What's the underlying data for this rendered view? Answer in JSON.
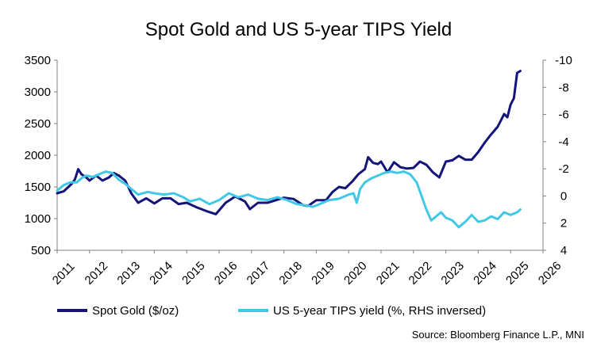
{
  "chart_data": {
    "type": "line",
    "title": "Spot Gold and US 5-year TIPS Yield",
    "source": "Source: Bloomberg Finance L.P., MNI",
    "colors": {
      "gold": "#14147a",
      "tips": "#40c8e6",
      "axis": "#808080"
    },
    "x_axis": {
      "min": 2011,
      "max": 2026,
      "ticks": [
        "2011",
        "2012",
        "2013",
        "2014",
        "2015",
        "2016",
        "2017",
        "2018",
        "2019",
        "2020",
        "2021",
        "2022",
        "2023",
        "2024",
        "2025",
        "2026"
      ]
    },
    "y_left": {
      "min": 500,
      "max": 3500,
      "ticks": [
        "500",
        "1000",
        "1500",
        "2000",
        "2500",
        "3000",
        "3500"
      ]
    },
    "y_right": {
      "min": -10,
      "max": 4,
      "inversed": true,
      "ticks": [
        "4",
        "2",
        "0",
        "-2",
        "-4",
        "-6",
        "-8",
        "-10"
      ]
    },
    "series": [
      {
        "name": "Spot Gold ($/oz)",
        "axis": "left",
        "x": [
          2011.0,
          2011.2,
          2011.45,
          2011.55,
          2011.65,
          2011.75,
          2011.9,
          2012.0,
          2012.2,
          2012.4,
          2012.6,
          2012.75,
          2012.9,
          2013.1,
          2013.3,
          2013.5,
          2013.75,
          2014.0,
          2014.25,
          2014.5,
          2014.75,
          2015.0,
          2015.3,
          2015.6,
          2015.9,
          2016.2,
          2016.5,
          2016.8,
          2016.95,
          2017.2,
          2017.5,
          2017.75,
          2018.0,
          2018.3,
          2018.6,
          2018.75,
          2019.0,
          2019.3,
          2019.5,
          2019.7,
          2019.9,
          2020.1,
          2020.3,
          2020.5,
          2020.6,
          2020.75,
          2020.9,
          2021.0,
          2021.2,
          2021.4,
          2021.6,
          2021.8,
          2022.0,
          2022.2,
          2022.4,
          2022.6,
          2022.8,
          2023.0,
          2023.2,
          2023.4,
          2023.6,
          2023.8,
          2024.0,
          2024.2,
          2024.4,
          2024.6,
          2024.8,
          2024.9,
          2025.0,
          2025.1,
          2025.2,
          2025.3
        ],
        "values": [
          1400,
          1430,
          1550,
          1620,
          1780,
          1700,
          1650,
          1600,
          1680,
          1600,
          1650,
          1720,
          1680,
          1600,
          1390,
          1250,
          1320,
          1240,
          1320,
          1320,
          1230,
          1250,
          1180,
          1120,
          1070,
          1250,
          1350,
          1270,
          1150,
          1250,
          1250,
          1290,
          1330,
          1310,
          1210,
          1200,
          1290,
          1290,
          1420,
          1500,
          1480,
          1580,
          1700,
          1780,
          1970,
          1880,
          1860,
          1900,
          1730,
          1890,
          1810,
          1790,
          1800,
          1900,
          1850,
          1730,
          1650,
          1900,
          1920,
          1990,
          1930,
          1930,
          2050,
          2200,
          2330,
          2450,
          2650,
          2600,
          2800,
          2900,
          3300,
          3330
        ]
      },
      {
        "name": "US 5-year TIPS yield (%, RHS inversed)",
        "axis": "right",
        "x": [
          2011.0,
          2011.2,
          2011.4,
          2011.6,
          2011.75,
          2011.9,
          2012.1,
          2012.3,
          2012.5,
          2012.7,
          2012.9,
          2013.1,
          2013.3,
          2013.5,
          2013.8,
          2014.0,
          2014.3,
          2014.6,
          2014.9,
          2015.1,
          2015.4,
          2015.7,
          2016.0,
          2016.3,
          2016.6,
          2016.9,
          2017.2,
          2017.5,
          2017.8,
          2018.1,
          2018.4,
          2018.7,
          2018.9,
          2019.1,
          2019.4,
          2019.7,
          2020.0,
          2020.15,
          2020.25,
          2020.35,
          2020.5,
          2020.7,
          2020.9,
          2021.1,
          2021.3,
          2021.5,
          2021.7,
          2021.9,
          2022.1,
          2022.25,
          2022.4,
          2022.55,
          2022.7,
          2022.85,
          2023.0,
          2023.2,
          2023.4,
          2023.6,
          2023.8,
          2024.0,
          2024.2,
          2024.4,
          2024.6,
          2024.8,
          2025.0,
          2025.2,
          2025.3
        ],
        "values": [
          -0.4,
          -0.8,
          -1.0,
          -1.0,
          -1.3,
          -1.5,
          -1.4,
          -1.6,
          -1.8,
          -1.7,
          -1.2,
          -0.9,
          -0.5,
          -0.1,
          -0.3,
          -0.2,
          -0.1,
          -0.2,
          0.1,
          0.4,
          0.2,
          0.6,
          0.3,
          -0.2,
          0.1,
          -0.1,
          0.2,
          0.3,
          0.1,
          0.3,
          0.6,
          0.7,
          0.8,
          0.6,
          0.3,
          0.2,
          -0.1,
          -0.2,
          0.5,
          -0.5,
          -1.0,
          -1.3,
          -1.5,
          -1.7,
          -1.8,
          -1.7,
          -1.8,
          -1.6,
          -1.0,
          0.0,
          1.0,
          1.8,
          1.5,
          1.2,
          1.6,
          1.8,
          2.3,
          1.9,
          1.4,
          1.9,
          1.8,
          1.5,
          1.7,
          1.2,
          1.4,
          1.2,
          1.0
        ]
      }
    ]
  }
}
